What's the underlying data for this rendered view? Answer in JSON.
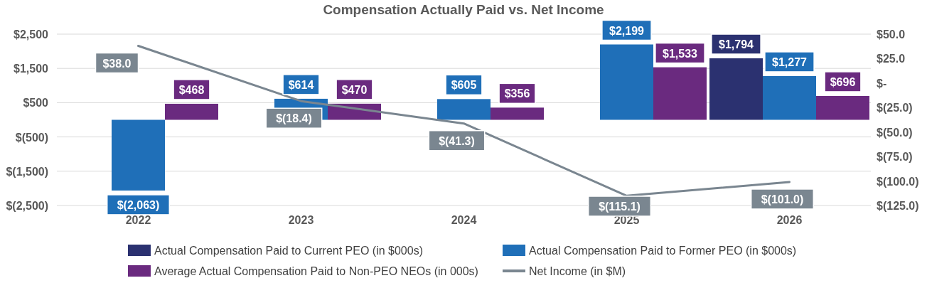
{
  "chart_data": {
    "type": "bar",
    "title": "Compensation Actually Paid vs. Net Income",
    "categories": [
      "2022",
      "2023",
      "2024",
      "2025",
      "2026"
    ],
    "series": [
      {
        "name": "Actual Compensation Paid to Current PEO (in $000s)",
        "color": "#2b3170",
        "values": [
          null,
          null,
          null,
          null,
          1794
        ],
        "value_labels": [
          null,
          null,
          null,
          null,
          "$1,794"
        ]
      },
      {
        "name": "Actual Compensation Paid to Former PEO (in $000s)",
        "color": "#1f6fb8",
        "values": [
          -2063,
          614,
          605,
          2199,
          1277
        ],
        "value_labels": [
          "$(2,063)",
          "$614",
          "$605",
          "$2,199",
          "$1,277"
        ]
      },
      {
        "name": "Average Actual Compensation Paid to Non-PEO NEOs (in 000s)",
        "color": "#6a2a7f",
        "values": [
          468,
          470,
          356,
          1533,
          696
        ],
        "value_labels": [
          "$468",
          "$470",
          "$356",
          "$1,533",
          "$696"
        ]
      },
      {
        "name": "Net Income (in $M)",
        "type": "line",
        "axis": "y2",
        "color": "#7a8690",
        "values": [
          38.0,
          -18.4,
          -41.3,
          -115.1,
          -101.0
        ],
        "value_labels": [
          "$38.0",
          "$(18.4)",
          "$(41.3)",
          "$(115.1)",
          "$(101.0)"
        ]
      }
    ],
    "ylim": [
      -2500,
      2500
    ],
    "yticks": [
      {
        "value": 2500,
        "label": "$2,500"
      },
      {
        "value": 1500,
        "label": "$1,500"
      },
      {
        "value": 500,
        "label": "$500"
      },
      {
        "value": -500,
        "label": "$(500)"
      },
      {
        "value": -1500,
        "label": "$(1,500)"
      },
      {
        "value": -2500,
        "label": "$(2,500)"
      }
    ],
    "y2lim": [
      -125,
      50
    ],
    "y2ticks": [
      {
        "value": 50,
        "label": "$50.0"
      },
      {
        "value": 25,
        "label": "$25.0"
      },
      {
        "value": 0,
        "label": "$-"
      },
      {
        "value": -25,
        "label": "$(25.0)"
      },
      {
        "value": -50,
        "label": "$(50.0)"
      },
      {
        "value": -75,
        "label": "$(75.0)"
      },
      {
        "value": -100,
        "label": "$(100.0)"
      },
      {
        "value": -125,
        "label": "$(125.0)"
      }
    ],
    "grid": "y",
    "legend": "bottom"
  }
}
